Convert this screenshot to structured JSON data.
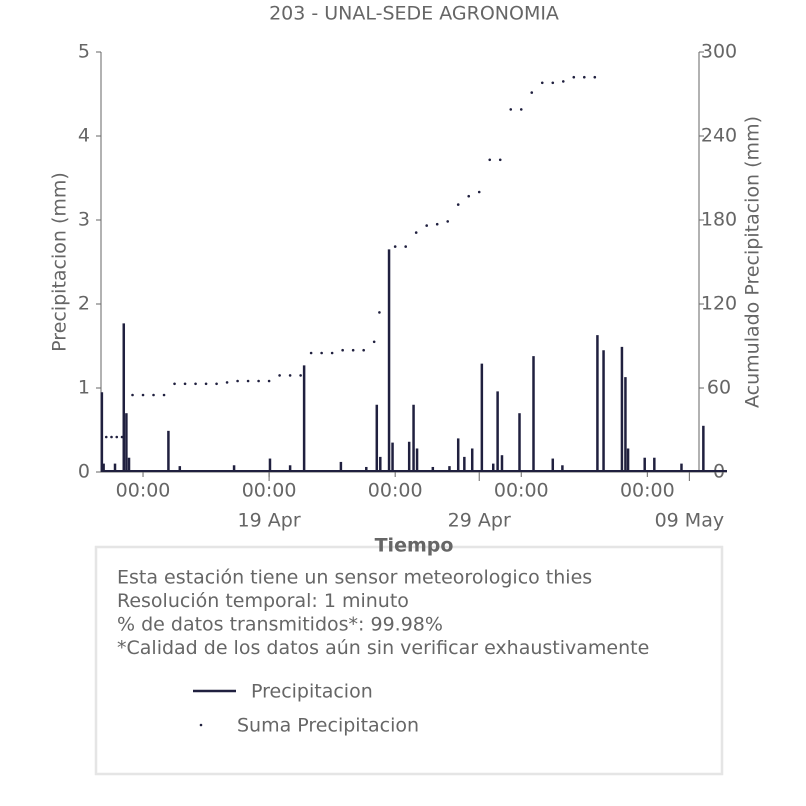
{
  "chart_data": {
    "type": "line",
    "title": "203 - UNAL-SEDE AGRONOMIA",
    "xlabel": "Tiempo",
    "ylabel": "Precipitacion (mm)",
    "y2label": "Acumulado Precipitacion (mm)",
    "xlim": [
      "Apr 11 00:00",
      "May 10 19:00"
    ],
    "xticks": [
      {
        "value": "Apr 13 00:00",
        "label": "00:00"
      },
      {
        "value": "Apr 19 00:00",
        "label": "00:00"
      },
      {
        "value": "Apr 25 00:00",
        "label": "00:00"
      },
      {
        "value": "May 1 00:00",
        "label": "00:00"
      },
      {
        "value": "May 7 00:00",
        "label": "00:00"
      }
    ],
    "xticks_dates": [
      {
        "value": "Apr 19 00:00",
        "label": "19 Apr"
      },
      {
        "value": "Apr 29 00:00",
        "label": "29 Apr"
      },
      {
        "value": "May 9 00:00",
        "label": "09 May"
      }
    ],
    "ylim": [
      0,
      5
    ],
    "yticks": [
      0,
      1,
      2,
      3,
      4,
      5
    ],
    "y2lim": [
      0,
      300
    ],
    "y2ticks": [
      0,
      60,
      120,
      180,
      240,
      300
    ],
    "series": [
      {
        "name": "Precipitacion",
        "color": "#20203f",
        "style": "spike",
        "x": [
          "Apr 11 01:00",
          "Apr 11 03:00",
          "Apr 11 16:00",
          "Apr 12 02:00",
          "Apr 12 05:00",
          "Apr 12 08:00",
          "Apr 14 05:00",
          "Apr 14 18:00",
          "Apr 17 08:00",
          "Apr 19 01:00",
          "Apr 20 00:00",
          "Apr 20 16:00",
          "Apr 22 10:00",
          "Apr 23 15:00",
          "Apr 24 03:00",
          "Apr 24 07:00",
          "Apr 24 17:00",
          "Apr 24 21:00",
          "Apr 25 16:00",
          "Apr 25 21:00",
          "Apr 26 01:00",
          "Apr 26 19:00",
          "Apr 27 14:00",
          "Apr 28 00:00",
          "Apr 28 07:00",
          "Apr 28 16:00",
          "Apr 29 03:00",
          "Apr 29 16:00",
          "Apr 29 21:00",
          "Apr 30 02:00",
          "Apr 30 22:00",
          "May 1 14:00",
          "May 2 12:00",
          "May 2 23:00",
          "May 4 15:00",
          "May 4 22:00",
          "May 5 19:00",
          "May 5 23:00",
          "May 6 02:00",
          "May 6 21:00",
          "May 7 08:00",
          "May 8 15:00",
          "May 9 16:00"
        ],
        "values": [
          0.95,
          0.1,
          0.1,
          1.77,
          0.7,
          0.17,
          0.49,
          0.07,
          0.08,
          0.16,
          0.08,
          1.27,
          0.12,
          0.06,
          0.8,
          0.18,
          2.65,
          0.35,
          0.36,
          0.8,
          0.28,
          0.06,
          0.07,
          0.4,
          0.18,
          0.28,
          1.29,
          0.1,
          0.96,
          0.2,
          0.7,
          1.38,
          0.16,
          0.08,
          1.63,
          1.45,
          1.49,
          1.13,
          0.28,
          0.17,
          0.17,
          0.1,
          0.55
        ]
      },
      {
        "name": "Suma Precipitacion",
        "color": "#20203f",
        "style": "dots",
        "axis": "y2",
        "x": [
          "Apr 11 06:00",
          "Apr 11 12:00",
          "Apr 11 18:00",
          "Apr 12 00:00",
          "Apr 12 12:00",
          "Apr 13 00:00",
          "Apr 13 12:00",
          "Apr 14 00:00",
          "Apr 14 12:00",
          "Apr 15 00:00",
          "Apr 15 12:00",
          "Apr 16 00:00",
          "Apr 16 12:00",
          "Apr 17 00:00",
          "Apr 17 12:00",
          "Apr 18 00:00",
          "Apr 18 12:00",
          "Apr 19 00:00",
          "Apr 19 12:00",
          "Apr 20 00:00",
          "Apr 20 12:00",
          "Apr 21 00:00",
          "Apr 21 12:00",
          "Apr 22 00:00",
          "Apr 22 12:00",
          "Apr 23 00:00",
          "Apr 23 12:00",
          "Apr 24 00:00",
          "Apr 24 06:00",
          "Apr 25 00:00",
          "Apr 25 12:00",
          "Apr 26 00:00",
          "Apr 26 12:00",
          "Apr 27 00:00",
          "Apr 27 12:00",
          "Apr 28 00:00",
          "Apr 28 12:00",
          "Apr 29 00:00",
          "Apr 29 12:00",
          "Apr 30 00:00",
          "Apr 30 12:00",
          "May 1 00:00",
          "May 1 12:00",
          "May 2 00:00",
          "May 2 12:00",
          "May 3 00:00",
          "May 3 12:00",
          "May 4 00:00",
          "May 4 12:00"
        ],
        "values": [
          25,
          25,
          25,
          25,
          55,
          55,
          55,
          55,
          63,
          63,
          63,
          63,
          63,
          64,
          65,
          65,
          65,
          65,
          69,
          69,
          69,
          85,
          85,
          85,
          87,
          87,
          87,
          93,
          114,
          161,
          161,
          171,
          176,
          177,
          179,
          191,
          197,
          200,
          223,
          223,
          259,
          259,
          271,
          278,
          278,
          279,
          282,
          282,
          282
        ]
      }
    ],
    "info_text": [
      "Esta estación tiene un sensor meteorologico thies",
      "Resolución temporal: 1 minuto",
      "% de datos transmitidos*: 99.98%",
      "*Calidad de los datos aún sin verificar exhaustivamente"
    ]
  }
}
